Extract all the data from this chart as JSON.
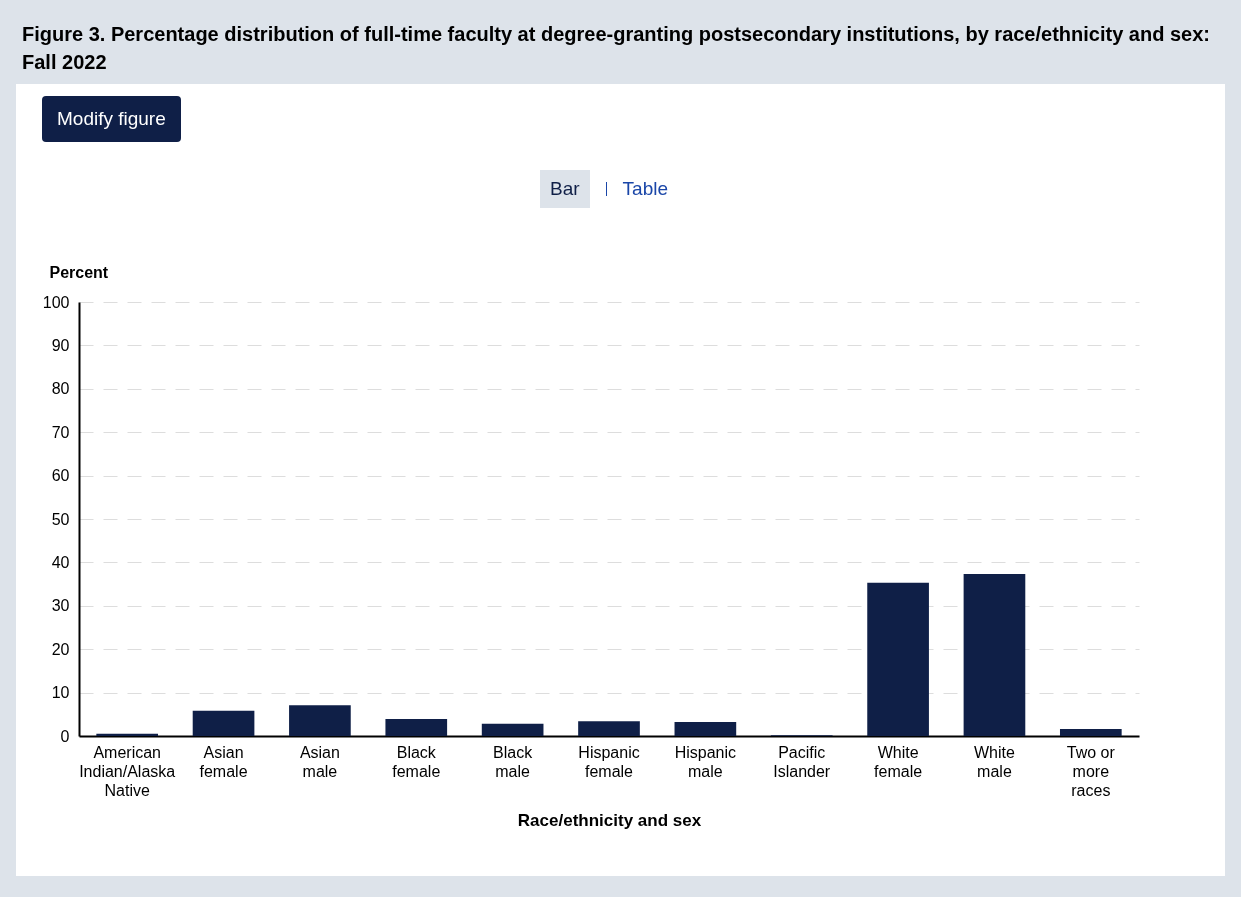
{
  "chart_data": {
    "type": "bar",
    "title": "Figure 3. Percentage distribution of full-time faculty at degree-granting postsecondary institutions, by race/ethnicity and sex: Fall 2022",
    "categories": [
      "American Indian/Alaska Native",
      "Asian female",
      "Asian male",
      "Black female",
      "Black male",
      "Hispanic female",
      "Hispanic male",
      "Pacific Islander",
      "White female",
      "White male",
      "Two or more races"
    ],
    "values": [
      0.5,
      5.8,
      7.1,
      3.9,
      2.8,
      3.4,
      3.2,
      0.2,
      35.3,
      37.3,
      1.6
    ],
    "color": "#0f1f47",
    "xlabel": "Race/ethnicity and sex",
    "ylabel": "Percent",
    "ylim": [
      0,
      100
    ],
    "yticks": [
      0,
      10,
      20,
      30,
      40,
      50,
      60,
      70,
      80,
      90,
      100
    ],
    "grid": "y",
    "annotations": [
      "Modify figure",
      "Bar",
      "Table"
    ]
  }
}
